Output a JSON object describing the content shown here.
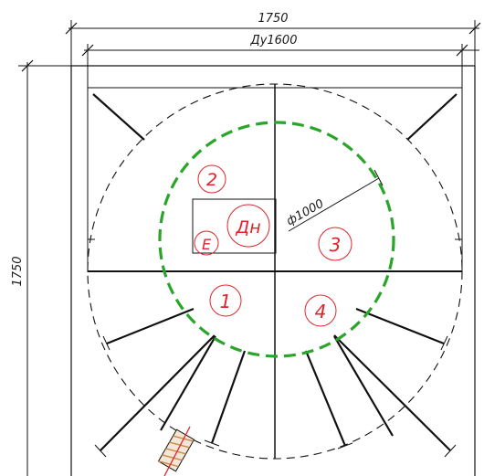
{
  "dimensions": {
    "overall_width": "1750",
    "nominal_diameter": "Ду1600",
    "overall_height": "1750",
    "inner_circle_diameter": "ф1000"
  },
  "labels": {
    "zone_1": "1",
    "zone_2": "2",
    "zone_3": "3",
    "zone_4": "4",
    "dn": "Дн",
    "e": "Е"
  },
  "colors": {
    "annotation": "#e0242b",
    "inner_circle": "#2aa52a",
    "linework": "#111111"
  }
}
